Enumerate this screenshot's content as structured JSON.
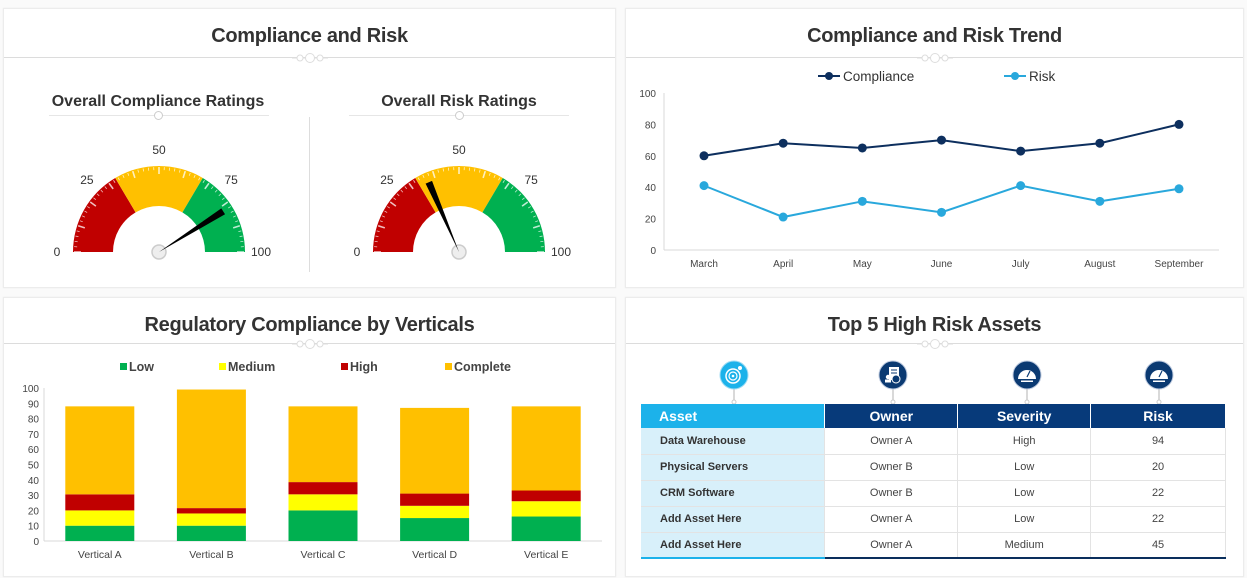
{
  "panels": {
    "compliance_risk": {
      "title": "Compliance and Risk",
      "gauges": [
        {
          "title": "Overall  Compliance Ratings",
          "value": 82,
          "min": 0,
          "max": 100,
          "tick_labels": [
            "0",
            "25",
            "50",
            "75",
            "100"
          ],
          "bands": [
            {
              "from": 0,
              "to": 33,
              "color": "#c00000"
            },
            {
              "from": 33,
              "to": 67,
              "color": "#ffc000"
            },
            {
              "from": 67,
              "to": 100,
              "color": "#00b050"
            }
          ]
        },
        {
          "title": "Overall  Risk Ratings",
          "value": 37,
          "min": 0,
          "max": 100,
          "tick_labels": [
            "0",
            "25",
            "50",
            "75",
            "100"
          ],
          "bands": [
            {
              "from": 0,
              "to": 33,
              "color": "#c00000"
            },
            {
              "from": 33,
              "to": 67,
              "color": "#ffc000"
            },
            {
              "from": 67,
              "to": 100,
              "color": "#00b050"
            }
          ]
        }
      ]
    },
    "trend": {
      "title": "Compliance and Risk Trend"
    },
    "verticals": {
      "title": "Regulatory Compliance by Verticals"
    },
    "assets": {
      "title": "Top 5 High Risk Assets",
      "icons": [
        "target-money-icon",
        "document-dollar-icon",
        "speedometer-icon",
        "speedometer-icon"
      ],
      "columns": [
        "Asset",
        "Owner",
        "Severity",
        "Risk"
      ],
      "rows": [
        [
          "Data Warehouse",
          "Owner A",
          "High",
          "94"
        ],
        [
          "Physical Servers",
          "Owner B",
          "Low",
          "20"
        ],
        [
          "CRM Software",
          "Owner B",
          "Low",
          "22"
        ],
        [
          "Add Asset Here",
          "Owner A",
          "Low",
          "22"
        ],
        [
          "Add Asset Here",
          "Owner A",
          "Medium",
          "45"
        ]
      ]
    }
  },
  "chart_data": [
    {
      "type": "line",
      "title": "Compliance and Risk Trend",
      "categories": [
        "March",
        "April",
        "May",
        "June",
        "July",
        "August",
        "September"
      ],
      "series": [
        {
          "name": "Compliance",
          "color": "#0d2f5e",
          "values": [
            60,
            68,
            65,
            70,
            63,
            68,
            80
          ]
        },
        {
          "name": "Risk",
          "color": "#29a8dc",
          "values": [
            41,
            21,
            31,
            24,
            41,
            31,
            39
          ]
        }
      ],
      "ylim": [
        0,
        100
      ],
      "yticks": [
        0,
        20,
        40,
        60,
        80,
        100
      ],
      "legend": "top-center",
      "grid": false
    },
    {
      "type": "bar",
      "stacked": true,
      "title": "Regulatory Compliance by Verticals",
      "categories": [
        "Vertical A",
        "Vertical B",
        "Vertical C",
        "Vertical D",
        "Vertical E"
      ],
      "series": [
        {
          "name": "Low",
          "color": "#00b050",
          "values": [
            10,
            10,
            20,
            15,
            16
          ]
        },
        {
          "name": "Medium",
          "color": "#ffff00",
          "values": [
            10,
            8,
            10.5,
            8,
            10
          ]
        },
        {
          "name": "High",
          "color": "#c00000",
          "values": [
            10.5,
            3.5,
            8,
            8,
            7
          ]
        },
        {
          "name": "Complete",
          "color": "#ffc000",
          "values": [
            57.5,
            77.5,
            49.5,
            56,
            55
          ]
        }
      ],
      "ylim": [
        0,
        100
      ],
      "yticks": [
        0,
        10,
        20,
        30,
        40,
        50,
        60,
        70,
        80,
        90,
        100
      ],
      "legend": "top-center",
      "grid": false
    }
  ]
}
